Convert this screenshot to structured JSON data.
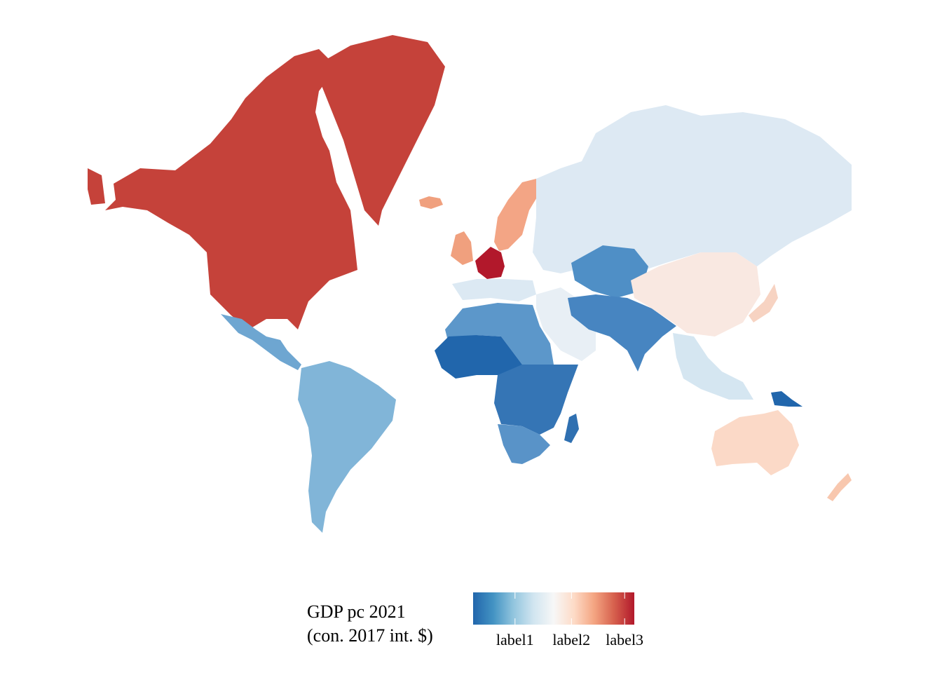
{
  "map": {
    "regions": [
      {
        "name": "North America",
        "color": "#c5423a"
      },
      {
        "name": "Greenland",
        "color": "#c5423a"
      },
      {
        "name": "Central America",
        "color": "#6ea6d1"
      },
      {
        "name": "South America",
        "color": "#81b5d8"
      },
      {
        "name": "Iceland",
        "color": "#f0a07e"
      },
      {
        "name": "Scandinavia",
        "color": "#f3a585"
      },
      {
        "name": "British Isles",
        "color": "#f0a07e"
      },
      {
        "name": "Central Europe",
        "color": "#b2182b"
      },
      {
        "name": "Southern Europe",
        "color": "#dce9f3"
      },
      {
        "name": "Russia",
        "color": "#dde9f3"
      },
      {
        "name": "Middle East",
        "color": "#e8eff5"
      },
      {
        "name": "Central Asia",
        "color": "#4f8fc6"
      },
      {
        "name": "South Asia",
        "color": "#4785c1"
      },
      {
        "name": "China",
        "color": "#f9e8e1"
      },
      {
        "name": "Japan",
        "color": "#f7d3c2"
      },
      {
        "name": "Southeast Asia",
        "color": "#d5e6f1"
      },
      {
        "name": "North Africa",
        "color": "#5c97ca"
      },
      {
        "name": "West Africa",
        "color": "#2166ac"
      },
      {
        "name": "Central & East Africa",
        "color": "#3575b5"
      },
      {
        "name": "Southern Africa",
        "color": "#5993c8"
      },
      {
        "name": "Madagascar",
        "color": "#2f70b1"
      },
      {
        "name": "Papua New Guinea",
        "color": "#2166ac"
      },
      {
        "name": "Australia",
        "color": "#fbd9c7"
      },
      {
        "name": "New Zealand",
        "color": "#f8c7ae"
      }
    ]
  },
  "legend": {
    "title_line1": "GDP pc 2021",
    "title_line2": "(con. 2017 int. $)",
    "ticks": [
      "label1",
      "label2",
      "label3"
    ],
    "tick_positions": [
      0.26,
      0.61,
      0.94
    ],
    "gradient": [
      "#2166ac",
      "#4393c3",
      "#92c5de",
      "#d1e5f0",
      "#f7f7f7",
      "#fddbc7",
      "#f4a582",
      "#d6604d",
      "#b2182b"
    ]
  }
}
